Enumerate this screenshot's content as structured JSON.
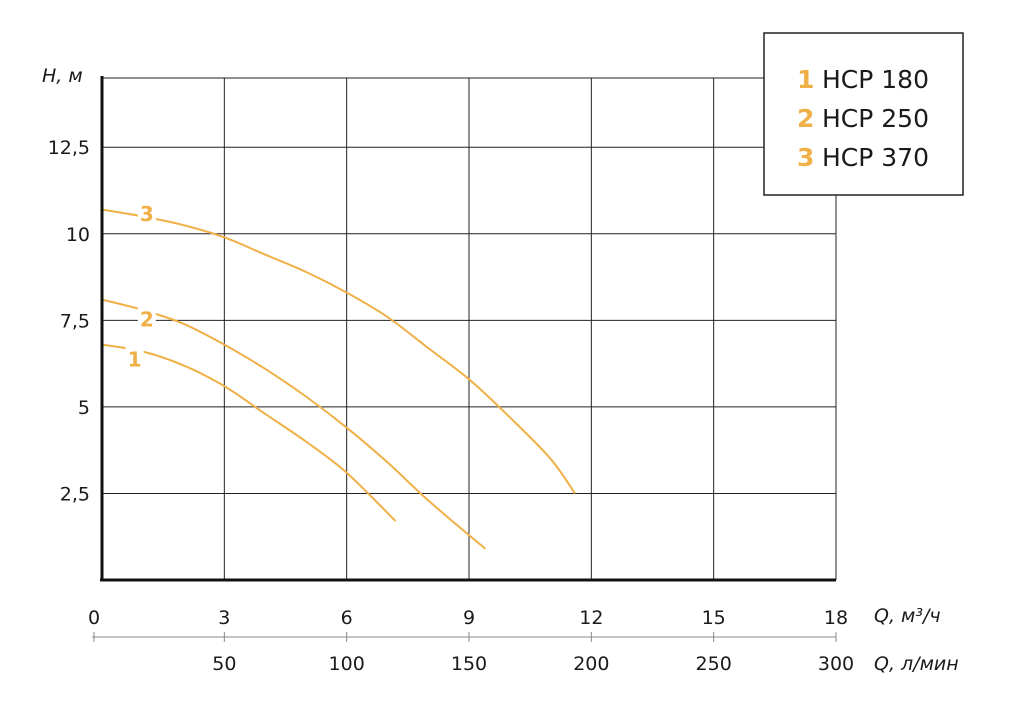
{
  "chart_data": {
    "type": "line",
    "ylabel": "H, м",
    "xlabel": "Q, м³/ч",
    "x2label": "Q, л/мин",
    "xlim": [
      0,
      18
    ],
    "ylim": [
      0,
      14.5
    ],
    "x_ticks": [
      0,
      3,
      6,
      9,
      12,
      15,
      18
    ],
    "x_tick_labels": [
      "0",
      "3",
      "6",
      "9",
      "12",
      "15",
      "18"
    ],
    "x2_ticks": [
      50,
      100,
      150,
      200,
      250,
      300
    ],
    "x2_tick_labels": [
      "50",
      "100",
      "150",
      "200",
      "250",
      "300"
    ],
    "y_ticks": [
      2.5,
      5,
      7.5,
      10,
      12.5
    ],
    "y_tick_labels": [
      "2,5",
      "5",
      "7,5",
      "10",
      "12,5"
    ],
    "grid": true,
    "legend_position": "top-right",
    "curve_color": "#f0b048",
    "series": [
      {
        "num": "1",
        "name": "HCP 180",
        "label_at": [
          0.8,
          6.4
        ],
        "points": [
          [
            0,
            6.8
          ],
          [
            1,
            6.6
          ],
          [
            2,
            6.2
          ],
          [
            3,
            5.6
          ],
          [
            4,
            4.8
          ],
          [
            5,
            4.0
          ],
          [
            6,
            3.1
          ],
          [
            7.2,
            1.7
          ]
        ]
      },
      {
        "num": "2",
        "name": "HCP 250",
        "label_at": [
          1.1,
          7.55
        ],
        "points": [
          [
            0,
            8.1
          ],
          [
            1,
            7.8
          ],
          [
            2,
            7.4
          ],
          [
            3,
            6.8
          ],
          [
            4,
            6.1
          ],
          [
            5,
            5.3
          ],
          [
            6,
            4.4
          ],
          [
            7,
            3.4
          ],
          [
            8,
            2.3
          ],
          [
            9.4,
            0.9
          ]
        ]
      },
      {
        "num": "3",
        "name": "HCP 370",
        "label_at": [
          1.1,
          10.6
        ],
        "points": [
          [
            0,
            10.7
          ],
          [
            1,
            10.5
          ],
          [
            2,
            10.25
          ],
          [
            3,
            9.9
          ],
          [
            4,
            9.4
          ],
          [
            5,
            8.9
          ],
          [
            6,
            8.3
          ],
          [
            7,
            7.6
          ],
          [
            8,
            6.7
          ],
          [
            9,
            5.8
          ],
          [
            10,
            4.7
          ],
          [
            11,
            3.5
          ],
          [
            11.6,
            2.5
          ]
        ]
      }
    ]
  }
}
